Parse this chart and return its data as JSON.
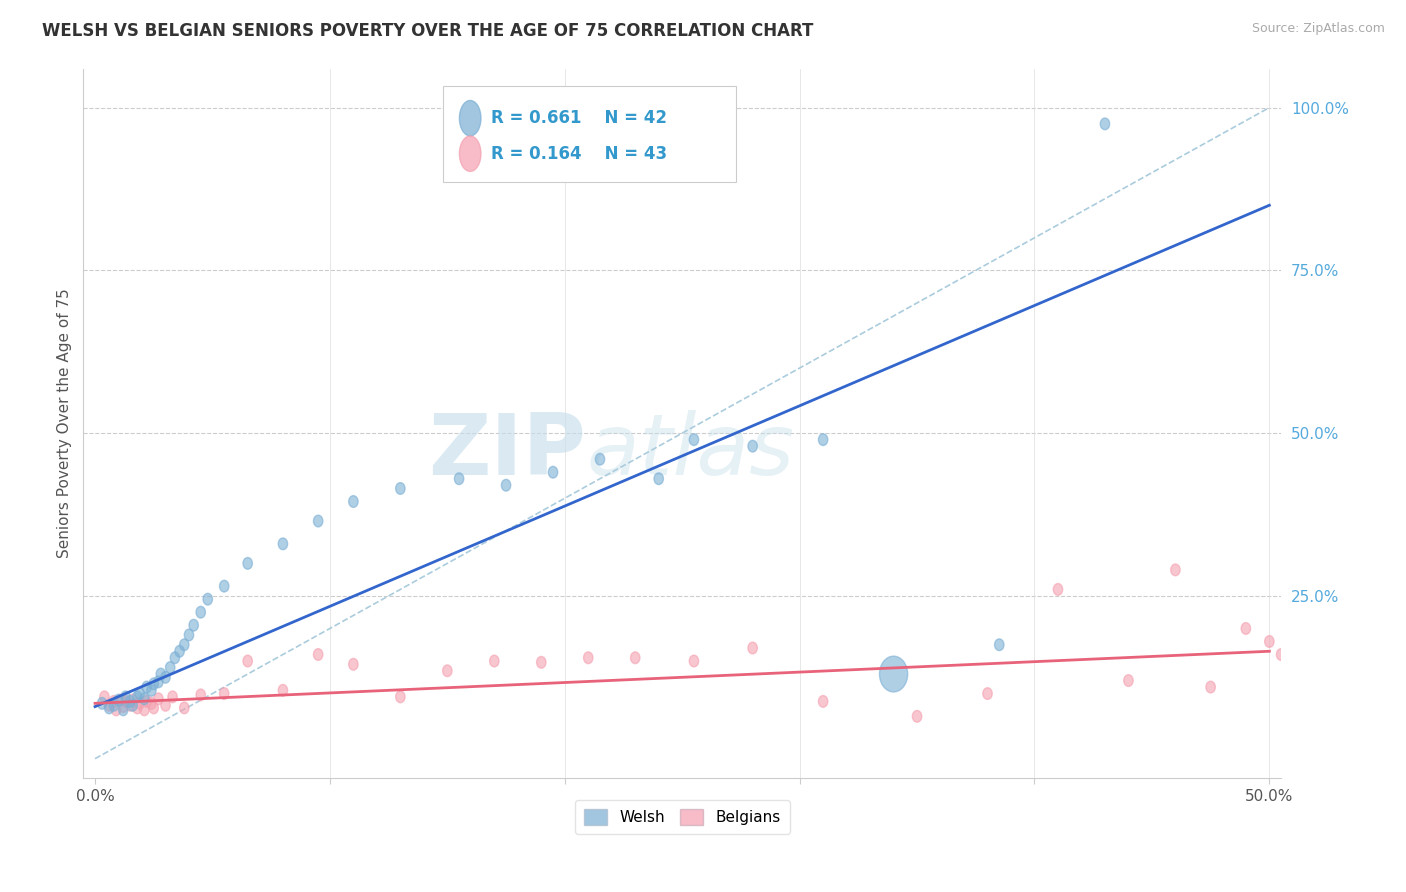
{
  "title": "WELSH VS BELGIAN SENIORS POVERTY OVER THE AGE OF 75 CORRELATION CHART",
  "source": "Source: ZipAtlas.com",
  "ylabel": "Seniors Poverty Over the Age of 75",
  "xlim": [
    -0.005,
    0.505
  ],
  "ylim": [
    -0.03,
    1.06
  ],
  "welsh_color": "#7BAFD4",
  "belgian_color": "#F4A0B0",
  "welsh_line_color": "#3366CC",
  "belgian_line_color": "#E8637A",
  "ref_line_color": "#AACCDD",
  "legend_welsh_R": "R = 0.661",
  "legend_welsh_N": "N = 42",
  "legend_belgian_R": "R = 0.164",
  "legend_belgian_N": "N = 43",
  "watermark_zip": "ZIP",
  "watermark_atlas": "atlas",
  "background_color": "#FFFFFF",
  "welsh_x": [
    0.003,
    0.006,
    0.008,
    0.01,
    0.012,
    0.013,
    0.015,
    0.016,
    0.018,
    0.019,
    0.021,
    0.022,
    0.024,
    0.025,
    0.027,
    0.028,
    0.03,
    0.032,
    0.034,
    0.036,
    0.038,
    0.04,
    0.042,
    0.045,
    0.048,
    0.055,
    0.065,
    0.08,
    0.095,
    0.11,
    0.13,
    0.155,
    0.175,
    0.195,
    0.215,
    0.24,
    0.255,
    0.28,
    0.31,
    0.34,
    0.385,
    0.43
  ],
  "welsh_y": [
    0.085,
    0.078,
    0.082,
    0.09,
    0.075,
    0.095,
    0.088,
    0.082,
    0.095,
    0.1,
    0.092,
    0.11,
    0.105,
    0.115,
    0.118,
    0.13,
    0.125,
    0.14,
    0.155,
    0.165,
    0.175,
    0.19,
    0.205,
    0.225,
    0.245,
    0.265,
    0.3,
    0.33,
    0.365,
    0.395,
    0.415,
    0.43,
    0.42,
    0.44,
    0.46,
    0.43,
    0.49,
    0.48,
    0.49,
    0.13,
    0.175,
    0.975
  ],
  "welsh_sizes_w": [
    0.004,
    0.004,
    0.004,
    0.004,
    0.004,
    0.004,
    0.004,
    0.004,
    0.004,
    0.004,
    0.004,
    0.004,
    0.004,
    0.004,
    0.004,
    0.004,
    0.004,
    0.004,
    0.004,
    0.004,
    0.004,
    0.004,
    0.004,
    0.004,
    0.004,
    0.004,
    0.004,
    0.004,
    0.004,
    0.004,
    0.004,
    0.004,
    0.004,
    0.004,
    0.004,
    0.004,
    0.004,
    0.004,
    0.004,
    0.012,
    0.004,
    0.004
  ],
  "welsh_sizes_h": [
    0.018,
    0.018,
    0.018,
    0.018,
    0.018,
    0.018,
    0.018,
    0.018,
    0.018,
    0.018,
    0.018,
    0.018,
    0.018,
    0.018,
    0.018,
    0.018,
    0.018,
    0.018,
    0.018,
    0.018,
    0.018,
    0.018,
    0.018,
    0.018,
    0.018,
    0.018,
    0.018,
    0.018,
    0.018,
    0.018,
    0.018,
    0.018,
    0.018,
    0.018,
    0.018,
    0.018,
    0.018,
    0.018,
    0.018,
    0.055,
    0.018,
    0.018
  ],
  "belgian_x": [
    0.004,
    0.006,
    0.008,
    0.009,
    0.011,
    0.012,
    0.013,
    0.015,
    0.016,
    0.018,
    0.019,
    0.021,
    0.022,
    0.024,
    0.025,
    0.027,
    0.03,
    0.033,
    0.038,
    0.045,
    0.055,
    0.065,
    0.08,
    0.095,
    0.11,
    0.13,
    0.15,
    0.17,
    0.19,
    0.21,
    0.23,
    0.255,
    0.28,
    0.31,
    0.35,
    0.38,
    0.41,
    0.44,
    0.46,
    0.475,
    0.49,
    0.5,
    0.505
  ],
  "belgian_y": [
    0.095,
    0.082,
    0.088,
    0.075,
    0.09,
    0.08,
    0.088,
    0.082,
    0.09,
    0.078,
    0.085,
    0.075,
    0.088,
    0.085,
    0.078,
    0.092,
    0.082,
    0.095,
    0.078,
    0.098,
    0.1,
    0.15,
    0.105,
    0.16,
    0.145,
    0.095,
    0.135,
    0.15,
    0.148,
    0.155,
    0.155,
    0.15,
    0.17,
    0.088,
    0.065,
    0.1,
    0.26,
    0.12,
    0.29,
    0.11,
    0.2,
    0.18,
    0.16
  ],
  "belgian_sizes_w": [
    0.004,
    0.004,
    0.004,
    0.004,
    0.004,
    0.004,
    0.004,
    0.004,
    0.004,
    0.004,
    0.004,
    0.004,
    0.004,
    0.004,
    0.004,
    0.004,
    0.004,
    0.004,
    0.004,
    0.004,
    0.004,
    0.004,
    0.004,
    0.004,
    0.004,
    0.004,
    0.004,
    0.004,
    0.004,
    0.004,
    0.004,
    0.004,
    0.004,
    0.004,
    0.004,
    0.004,
    0.004,
    0.004,
    0.004,
    0.004,
    0.004,
    0.004,
    0.004
  ],
  "belgian_sizes_h": [
    0.018,
    0.018,
    0.018,
    0.018,
    0.018,
    0.018,
    0.018,
    0.018,
    0.018,
    0.018,
    0.018,
    0.018,
    0.018,
    0.018,
    0.018,
    0.018,
    0.018,
    0.018,
    0.018,
    0.018,
    0.018,
    0.018,
    0.018,
    0.018,
    0.018,
    0.018,
    0.018,
    0.018,
    0.018,
    0.018,
    0.018,
    0.018,
    0.018,
    0.018,
    0.018,
    0.018,
    0.018,
    0.018,
    0.018,
    0.018,
    0.018,
    0.018,
    0.018
  ],
  "welsh_line": [
    0.0,
    0.5,
    0.08,
    0.85
  ],
  "belgian_line": [
    0.0,
    0.5,
    0.085,
    0.165
  ],
  "ref_line": [
    0.0,
    0.5,
    0.0,
    1.0
  ]
}
